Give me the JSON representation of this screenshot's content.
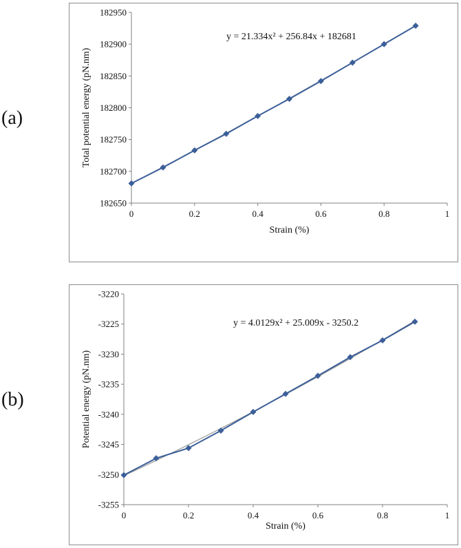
{
  "panels": [
    {
      "label": "(a)",
      "chart_data": {
        "type": "line",
        "xlabel": "Strain (%)",
        "ylabel": "Total potential energy (pN.nm)",
        "xlim": [
          0,
          1
        ],
        "ylim": [
          182650,
          182950
        ],
        "xticks": [
          0,
          0.2,
          0.4,
          0.6,
          0.8,
          1
        ],
        "xtick_labels": [
          "0",
          "0.2",
          "0.4",
          "0.6",
          "0.8",
          "1"
        ],
        "yticks": [
          182650,
          182700,
          182750,
          182800,
          182850,
          182900,
          182950
        ],
        "ytick_labels": [
          "182650",
          "182700",
          "182750",
          "182800",
          "182850",
          "182900",
          "182950"
        ],
        "grid": false,
        "series": [
          {
            "color": "#3c5f99",
            "marker": "diamond",
            "x": [
              0,
              0.1,
              0.2,
              0.3,
              0.4,
              0.5,
              0.6,
              0.7,
              0.8,
              0.9
            ],
            "y": [
              182681,
              182706,
              182733,
              182759,
              182787,
              182814,
              182842,
              182871,
              182900,
              182929
            ]
          }
        ],
        "trendline": {
          "type": "polynomial",
          "coefficients": [
            21.334,
            256.84,
            182681
          ],
          "color": "#9a9a9a",
          "equation_text": "y = 21.334x² + 256.84x + 182681"
        }
      }
    },
    {
      "label": "(b)",
      "chart_data": {
        "type": "line",
        "xlabel": "Strain (%)",
        "ylabel": "Potential energy (pN.nm)",
        "xlim": [
          0,
          1
        ],
        "ylim": [
          -3255,
          -3220
        ],
        "xticks": [
          0,
          0.2,
          0.4,
          0.6,
          0.8,
          1
        ],
        "xtick_labels": [
          "0",
          "0.2",
          "0.4",
          "0.6",
          "0.8",
          "1"
        ],
        "yticks": [
          -3255,
          -3250,
          -3245,
          -3240,
          -3235,
          -3230,
          -3225,
          -3220
        ],
        "ytick_labels": [
          "-3255",
          "-3250",
          "-3245",
          "-3240",
          "-3235",
          "-3230",
          "-3225",
          "-3220"
        ],
        "grid": false,
        "series": [
          {
            "color": "#3c5f99",
            "marker": "diamond",
            "x": [
              0,
              0.1,
              0.2,
              0.3,
              0.4,
              0.5,
              0.6,
              0.7,
              0.8,
              0.9
            ],
            "y": [
              -3250.1,
              -3247.3,
              -3245.6,
              -3242.7,
              -3239.6,
              -3236.6,
              -3233.6,
              -3230.5,
              -3227.7,
              -3224.6
            ]
          }
        ],
        "trendline": {
          "type": "polynomial",
          "coefficients": [
            4.0129,
            25.009,
            -3250.2
          ],
          "color": "#9a9a9a",
          "equation_text": "y = 4.0129x² + 25.009x - 3250.2"
        }
      }
    }
  ]
}
